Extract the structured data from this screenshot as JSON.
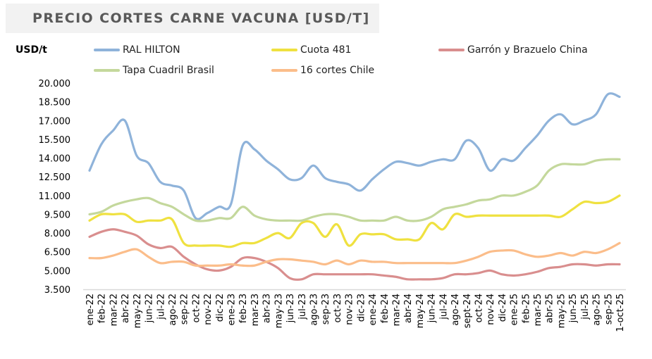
{
  "chart_data": {
    "type": "line",
    "title": "PRECIO CORTES CARNE VACUNA [USD/T]",
    "ylabel": "USD/t",
    "xlabel": "",
    "ylim": [
      3500,
      20000
    ],
    "yticks": [
      20000,
      18500,
      17000,
      15500,
      14000,
      12500,
      11000,
      9500,
      8000,
      6500,
      5000,
      3500
    ],
    "ytick_labels": [
      "20.000",
      "18.500",
      "17.000",
      "15.500",
      "14.000",
      "12.500",
      "11.000",
      "9.500",
      "8.000",
      "6.500",
      "5.000",
      "3.500"
    ],
    "grid": false,
    "legend_position": "top",
    "categories": [
      "ene-22",
      "feb-22",
      "mar-22",
      "abr-22",
      "may-22",
      "jun-22",
      "jul-22",
      "ago-22",
      "sep-22",
      "oct-22",
      "nov-22",
      "dic-22",
      "ene-23",
      "feb-23",
      "mar-23",
      "abr-23",
      "may-23",
      "jun-23",
      "jul-23",
      "ago-23",
      "sep-23",
      "oct-23",
      "nov-23",
      "dic-23",
      "ene-24",
      "feb-24",
      "mar-24",
      "abr-24",
      "may-24",
      "jun-24",
      "jul-24",
      "ago-24",
      "sept-24",
      "oct-24",
      "nov-24",
      "dic-24",
      "ene-25",
      "feb-25",
      "mar-25",
      "abr-25",
      "may-25",
      "jun-25",
      "jul-25",
      "ago-25",
      "sep-25",
      "1-oct-25"
    ],
    "series": [
      {
        "name": "RAL HILTON",
        "color": "#8fb3da",
        "values": [
          13000,
          15100,
          16200,
          17000,
          14200,
          13600,
          12100,
          11800,
          11400,
          9200,
          9600,
          10100,
          10300,
          15000,
          14700,
          13800,
          13100,
          12300,
          12400,
          13400,
          12400,
          12100,
          11900,
          11400,
          12300,
          13100,
          13700,
          13600,
          13400,
          13700,
          13900,
          13900,
          15400,
          14800,
          13000,
          13900,
          13800,
          14800,
          15800,
          17000,
          17500,
          16700,
          17000,
          17500,
          19100,
          18900
        ]
      },
      {
        "name": "Cuota 481",
        "color": "#efe140",
        "values": [
          9000,
          9500,
          9500,
          9500,
          8900,
          9000,
          9000,
          9100,
          7200,
          7000,
          7000,
          7000,
          6900,
          7200,
          7200,
          7600,
          8000,
          7600,
          8800,
          8800,
          7700,
          8700,
          7000,
          7900,
          7900,
          7900,
          7500,
          7500,
          7500,
          8800,
          8300,
          9500,
          9300,
          9400,
          9400,
          9400,
          9400,
          9400,
          9400,
          9400,
          9300,
          9900,
          10500,
          10400,
          10500,
          11000
        ]
      },
      {
        "name": "Garrón y Brazuelo China",
        "color": "#d98e8e",
        "values": [
          7700,
          8100,
          8300,
          8100,
          7800,
          7100,
          6800,
          6900,
          6100,
          5500,
          5100,
          5000,
          5300,
          6000,
          6000,
          5700,
          5200,
          4400,
          4300,
          4700,
          4700,
          4700,
          4700,
          4700,
          4700,
          4600,
          4500,
          4300,
          4300,
          4300,
          4400,
          4700,
          4700,
          4800,
          5000,
          4700,
          4600,
          4700,
          4900,
          5200,
          5300,
          5500,
          5500,
          5400,
          5500,
          5500
        ]
      },
      {
        "name": "Tapa Cuadril Brasil",
        "color": "#c4d89c",
        "values": [
          9500,
          9700,
          10200,
          10500,
          10700,
          10800,
          10400,
          10100,
          9500,
          9000,
          9000,
          9200,
          9200,
          10100,
          9400,
          9100,
          9000,
          9000,
          9000,
          9300,
          9500,
          9500,
          9300,
          9000,
          9000,
          9000,
          9300,
          9000,
          9000,
          9300,
          9900,
          10100,
          10300,
          10600,
          10700,
          11000,
          11000,
          11300,
          11800,
          13000,
          13500,
          13500,
          13500,
          13800,
          13900,
          13900
        ]
      },
      {
        "name": "16 cortes Chile",
        "color": "#fbbd8a",
        "values": [
          6000,
          6000,
          6200,
          6500,
          6700,
          6100,
          5600,
          5700,
          5700,
          5400,
          5400,
          5400,
          5500,
          5400,
          5400,
          5700,
          5900,
          5900,
          5800,
          5700,
          5500,
          5800,
          5500,
          5800,
          5700,
          5700,
          5600,
          5600,
          5600,
          5600,
          5600,
          5600,
          5800,
          6100,
          6500,
          6600,
          6600,
          6300,
          6100,
          6200,
          6400,
          6200,
          6500,
          6400,
          6700,
          7200
        ]
      }
    ]
  }
}
